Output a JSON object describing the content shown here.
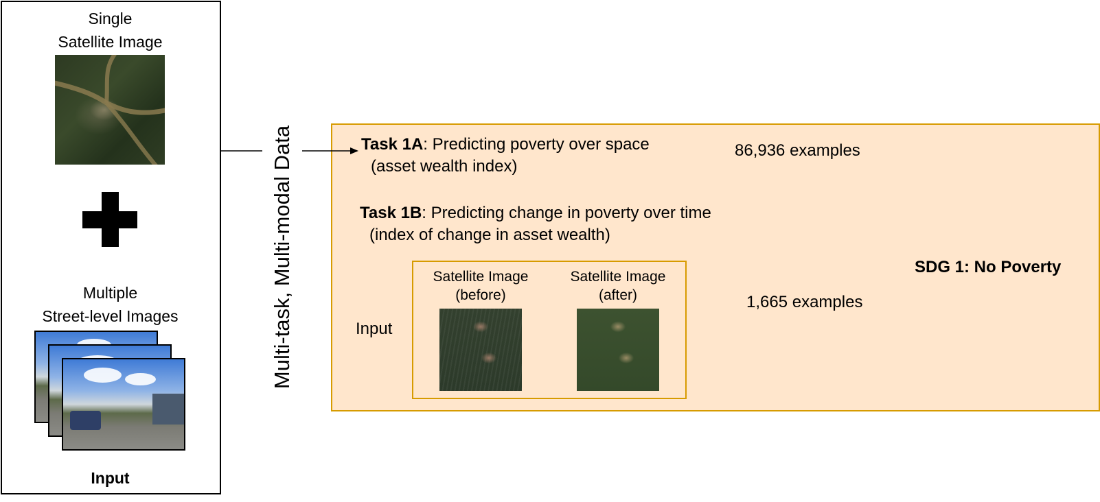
{
  "input_panel": {
    "single_title": [
      "Single",
      "Satellite Image"
    ],
    "multi_title": [
      "Multiple",
      "Street-level Images"
    ],
    "label": "Input"
  },
  "rotated_label": "Multi-task, Multi-modal Data",
  "task_panel": {
    "task_1a": {
      "label": "Task 1A",
      "text": ": Predicting poverty over space",
      "subtext": "(asset wealth index)",
      "examples": "86,936 examples"
    },
    "task_1b": {
      "label": "Task 1B",
      "text": ": Predicting change in poverty over time",
      "subtext": "(index of change in asset wealth)",
      "examples": "1,665 examples"
    },
    "pair": {
      "input_label": "Input",
      "before": [
        "Satellite Image",
        "(before)"
      ],
      "after": [
        "Satellite Image",
        "(after)"
      ]
    },
    "sdg_label": "SDG 1: No Poverty"
  },
  "colors": {
    "panel_fill": "#ffe6cc",
    "panel_border": "#d79b00",
    "stroke": "#000000"
  }
}
